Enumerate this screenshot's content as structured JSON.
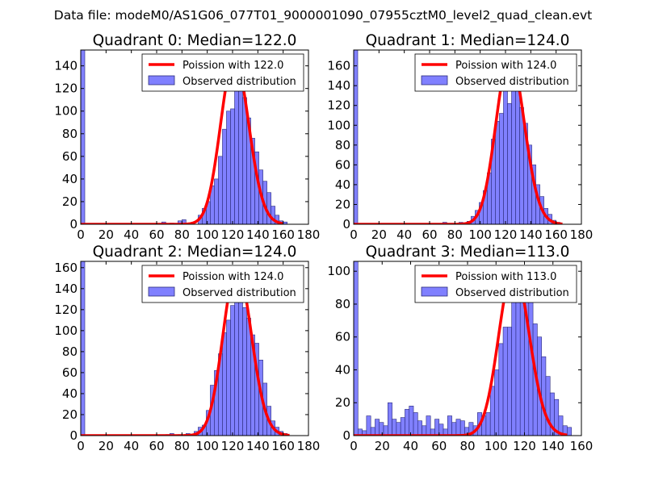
{
  "suptitle": "Data file: modeM0/AS1G06_077T01_9000001090_07955cztM0_level2_quad_clean.evt",
  "colors": {
    "poisson": "#ff0000",
    "bar_fill": "#8080ff",
    "bar_edge": "#2a2a7a",
    "frame": "#000000"
  },
  "chart_data": [
    {
      "type": "bar",
      "title": "Quadrant 0: Median=122.0",
      "xlabel": "",
      "ylabel": "",
      "xlim": [
        0,
        180
      ],
      "ylim": [
        0,
        154
      ],
      "xticks": [
        0,
        20,
        40,
        60,
        80,
        100,
        120,
        140,
        160,
        180
      ],
      "yticks": [
        0,
        20,
        40,
        60,
        80,
        100,
        120,
        140
      ],
      "legend": {
        "placement": "top-right",
        "entries": [
          "Poission with 122.0",
          "Observed distribution"
        ]
      },
      "bin_width": 3.2,
      "bins": [
        {
          "x": 0,
          "y": 154
        },
        {
          "x": 64,
          "y": 2
        },
        {
          "x": 70.4,
          "y": 1
        },
        {
          "x": 76.8,
          "y": 3
        },
        {
          "x": 80,
          "y": 4
        },
        {
          "x": 92.8,
          "y": 8
        },
        {
          "x": 96,
          "y": 14
        },
        {
          "x": 99.2,
          "y": 20
        },
        {
          "x": 102.4,
          "y": 34
        },
        {
          "x": 105.6,
          "y": 40
        },
        {
          "x": 108.8,
          "y": 60
        },
        {
          "x": 112,
          "y": 84
        },
        {
          "x": 115.2,
          "y": 100
        },
        {
          "x": 118.4,
          "y": 102
        },
        {
          "x": 121.6,
          "y": 128
        },
        {
          "x": 124.8,
          "y": 145
        },
        {
          "x": 128,
          "y": 112
        },
        {
          "x": 131.2,
          "y": 94
        },
        {
          "x": 134.4,
          "y": 76
        },
        {
          "x": 137.6,
          "y": 64
        },
        {
          "x": 140.8,
          "y": 48
        },
        {
          "x": 144,
          "y": 38
        },
        {
          "x": 147.2,
          "y": 28
        },
        {
          "x": 150.4,
          "y": 16
        },
        {
          "x": 153.6,
          "y": 8
        },
        {
          "x": 156.8,
          "y": 3
        },
        {
          "x": 160,
          "y": 2
        }
      ],
      "poisson": {
        "mean": 122.0,
        "peak": 147,
        "range": [
          0,
          160
        ]
      }
    },
    {
      "type": "bar",
      "title": "Quadrant 1: Median=124.0",
      "xlabel": "",
      "ylabel": "",
      "xlim": [
        0,
        180
      ],
      "ylim": [
        0,
        176
      ],
      "xticks": [
        0,
        20,
        40,
        60,
        80,
        100,
        120,
        140,
        160,
        180
      ],
      "yticks": [
        0,
        20,
        40,
        60,
        80,
        100,
        120,
        140,
        160
      ],
      "legend": {
        "placement": "top-right",
        "entries": [
          "Poission with 124.0",
          "Observed distribution"
        ]
      },
      "bin_width": 3.2,
      "bins": [
        {
          "x": 0,
          "y": 176
        },
        {
          "x": 70.4,
          "y": 2
        },
        {
          "x": 76.8,
          "y": 1
        },
        {
          "x": 83.2,
          "y": 2
        },
        {
          "x": 89.6,
          "y": 3
        },
        {
          "x": 92.8,
          "y": 8
        },
        {
          "x": 96,
          "y": 14
        },
        {
          "x": 99.2,
          "y": 22
        },
        {
          "x": 102.4,
          "y": 34
        },
        {
          "x": 105.6,
          "y": 52
        },
        {
          "x": 108.8,
          "y": 86
        },
        {
          "x": 112,
          "y": 104
        },
        {
          "x": 115.2,
          "y": 112
        },
        {
          "x": 118.4,
          "y": 138
        },
        {
          "x": 121.6,
          "y": 122
        },
        {
          "x": 124.8,
          "y": 154
        },
        {
          "x": 128,
          "y": 160
        },
        {
          "x": 131.2,
          "y": 118
        },
        {
          "x": 134.4,
          "y": 102
        },
        {
          "x": 137.6,
          "y": 80
        },
        {
          "x": 140.8,
          "y": 60
        },
        {
          "x": 144,
          "y": 40
        },
        {
          "x": 147.2,
          "y": 28
        },
        {
          "x": 150.4,
          "y": 16
        },
        {
          "x": 153.6,
          "y": 10
        },
        {
          "x": 156.8,
          "y": 4
        },
        {
          "x": 160,
          "y": 2
        }
      ],
      "poisson": {
        "mean": 124.0,
        "peak": 170,
        "range": [
          0,
          165
        ]
      }
    },
    {
      "type": "bar",
      "title": "Quadrant 2: Median=124.0",
      "xlabel": "",
      "ylabel": "",
      "xlim": [
        0,
        180
      ],
      "ylim": [
        0,
        166
      ],
      "xticks": [
        0,
        20,
        40,
        60,
        80,
        100,
        120,
        140,
        160,
        180
      ],
      "yticks": [
        0,
        20,
        40,
        60,
        80,
        100,
        120,
        140,
        160
      ],
      "legend": {
        "placement": "top-right",
        "entries": [
          "Poission with 124.0",
          "Observed distribution"
        ]
      },
      "bin_width": 3.2,
      "bins": [
        {
          "x": 0,
          "y": 166
        },
        {
          "x": 67.2,
          "y": 1
        },
        {
          "x": 70.4,
          "y": 2
        },
        {
          "x": 76.8,
          "y": 1
        },
        {
          "x": 83.2,
          "y": 2
        },
        {
          "x": 89.6,
          "y": 4
        },
        {
          "x": 92.8,
          "y": 8
        },
        {
          "x": 96,
          "y": 10
        },
        {
          "x": 99.2,
          "y": 24
        },
        {
          "x": 102.4,
          "y": 48
        },
        {
          "x": 105.6,
          "y": 62
        },
        {
          "x": 108.8,
          "y": 78
        },
        {
          "x": 112,
          "y": 98
        },
        {
          "x": 115.2,
          "y": 110
        },
        {
          "x": 118.4,
          "y": 124
        },
        {
          "x": 121.6,
          "y": 130
        },
        {
          "x": 124.8,
          "y": 146
        },
        {
          "x": 128,
          "y": 122
        },
        {
          "x": 131.2,
          "y": 112
        },
        {
          "x": 134.4,
          "y": 96
        },
        {
          "x": 137.6,
          "y": 88
        },
        {
          "x": 140.8,
          "y": 72
        },
        {
          "x": 144,
          "y": 50
        },
        {
          "x": 147.2,
          "y": 28
        },
        {
          "x": 150.4,
          "y": 14
        },
        {
          "x": 153.6,
          "y": 8
        },
        {
          "x": 156.8,
          "y": 4
        },
        {
          "x": 160,
          "y": 2
        }
      ],
      "poisson": {
        "mean": 124.0,
        "peak": 160,
        "range": [
          0,
          165
        ]
      }
    },
    {
      "type": "bar",
      "title": "Quadrant 3: Median=113.0",
      "xlabel": "",
      "ylabel": "",
      "xlim": [
        0,
        160
      ],
      "ylim": [
        0,
        106
      ],
      "xticks": [
        0,
        20,
        40,
        60,
        80,
        100,
        120,
        140,
        160
      ],
      "yticks": [
        0,
        20,
        40,
        60,
        80,
        100
      ],
      "legend": {
        "placement": "top-right",
        "entries": [
          "Poission with 113.0",
          "Observed distribution"
        ]
      },
      "bin_width": 3.0,
      "bins": [
        {
          "x": 0,
          "y": 106
        },
        {
          "x": 3,
          "y": 4
        },
        {
          "x": 6,
          "y": 3
        },
        {
          "x": 9,
          "y": 12
        },
        {
          "x": 12,
          "y": 5
        },
        {
          "x": 15,
          "y": 10
        },
        {
          "x": 18,
          "y": 8
        },
        {
          "x": 21,
          "y": 6
        },
        {
          "x": 24,
          "y": 20
        },
        {
          "x": 27,
          "y": 10
        },
        {
          "x": 30,
          "y": 8
        },
        {
          "x": 33,
          "y": 11
        },
        {
          "x": 36,
          "y": 16
        },
        {
          "x": 39,
          "y": 18
        },
        {
          "x": 42,
          "y": 14
        },
        {
          "x": 45,
          "y": 9
        },
        {
          "x": 48,
          "y": 6
        },
        {
          "x": 51,
          "y": 12
        },
        {
          "x": 54,
          "y": 4
        },
        {
          "x": 57,
          "y": 10
        },
        {
          "x": 60,
          "y": 7
        },
        {
          "x": 63,
          "y": 4
        },
        {
          "x": 66,
          "y": 12
        },
        {
          "x": 69,
          "y": 8
        },
        {
          "x": 72,
          "y": 10
        },
        {
          "x": 75,
          "y": 9
        },
        {
          "x": 78,
          "y": 5
        },
        {
          "x": 81,
          "y": 8
        },
        {
          "x": 84,
          "y": 6
        },
        {
          "x": 87,
          "y": 14
        },
        {
          "x": 90,
          "y": 12
        },
        {
          "x": 93,
          "y": 14
        },
        {
          "x": 96,
          "y": 30
        },
        {
          "x": 99,
          "y": 40
        },
        {
          "x": 102,
          "y": 56
        },
        {
          "x": 105,
          "y": 66
        },
        {
          "x": 108,
          "y": 66
        },
        {
          "x": 111,
          "y": 82
        },
        {
          "x": 114,
          "y": 90
        },
        {
          "x": 117,
          "y": 100
        },
        {
          "x": 120,
          "y": 94
        },
        {
          "x": 123,
          "y": 86
        },
        {
          "x": 126,
          "y": 68
        },
        {
          "x": 129,
          "y": 60
        },
        {
          "x": 132,
          "y": 48
        },
        {
          "x": 135,
          "y": 36
        },
        {
          "x": 138,
          "y": 26
        },
        {
          "x": 141,
          "y": 22
        },
        {
          "x": 144,
          "y": 12
        },
        {
          "x": 147,
          "y": 6
        },
        {
          "x": 150,
          "y": 5
        }
      ],
      "poisson": {
        "mean": 113.0,
        "peak": 102,
        "range": [
          0,
          150
        ]
      }
    }
  ]
}
